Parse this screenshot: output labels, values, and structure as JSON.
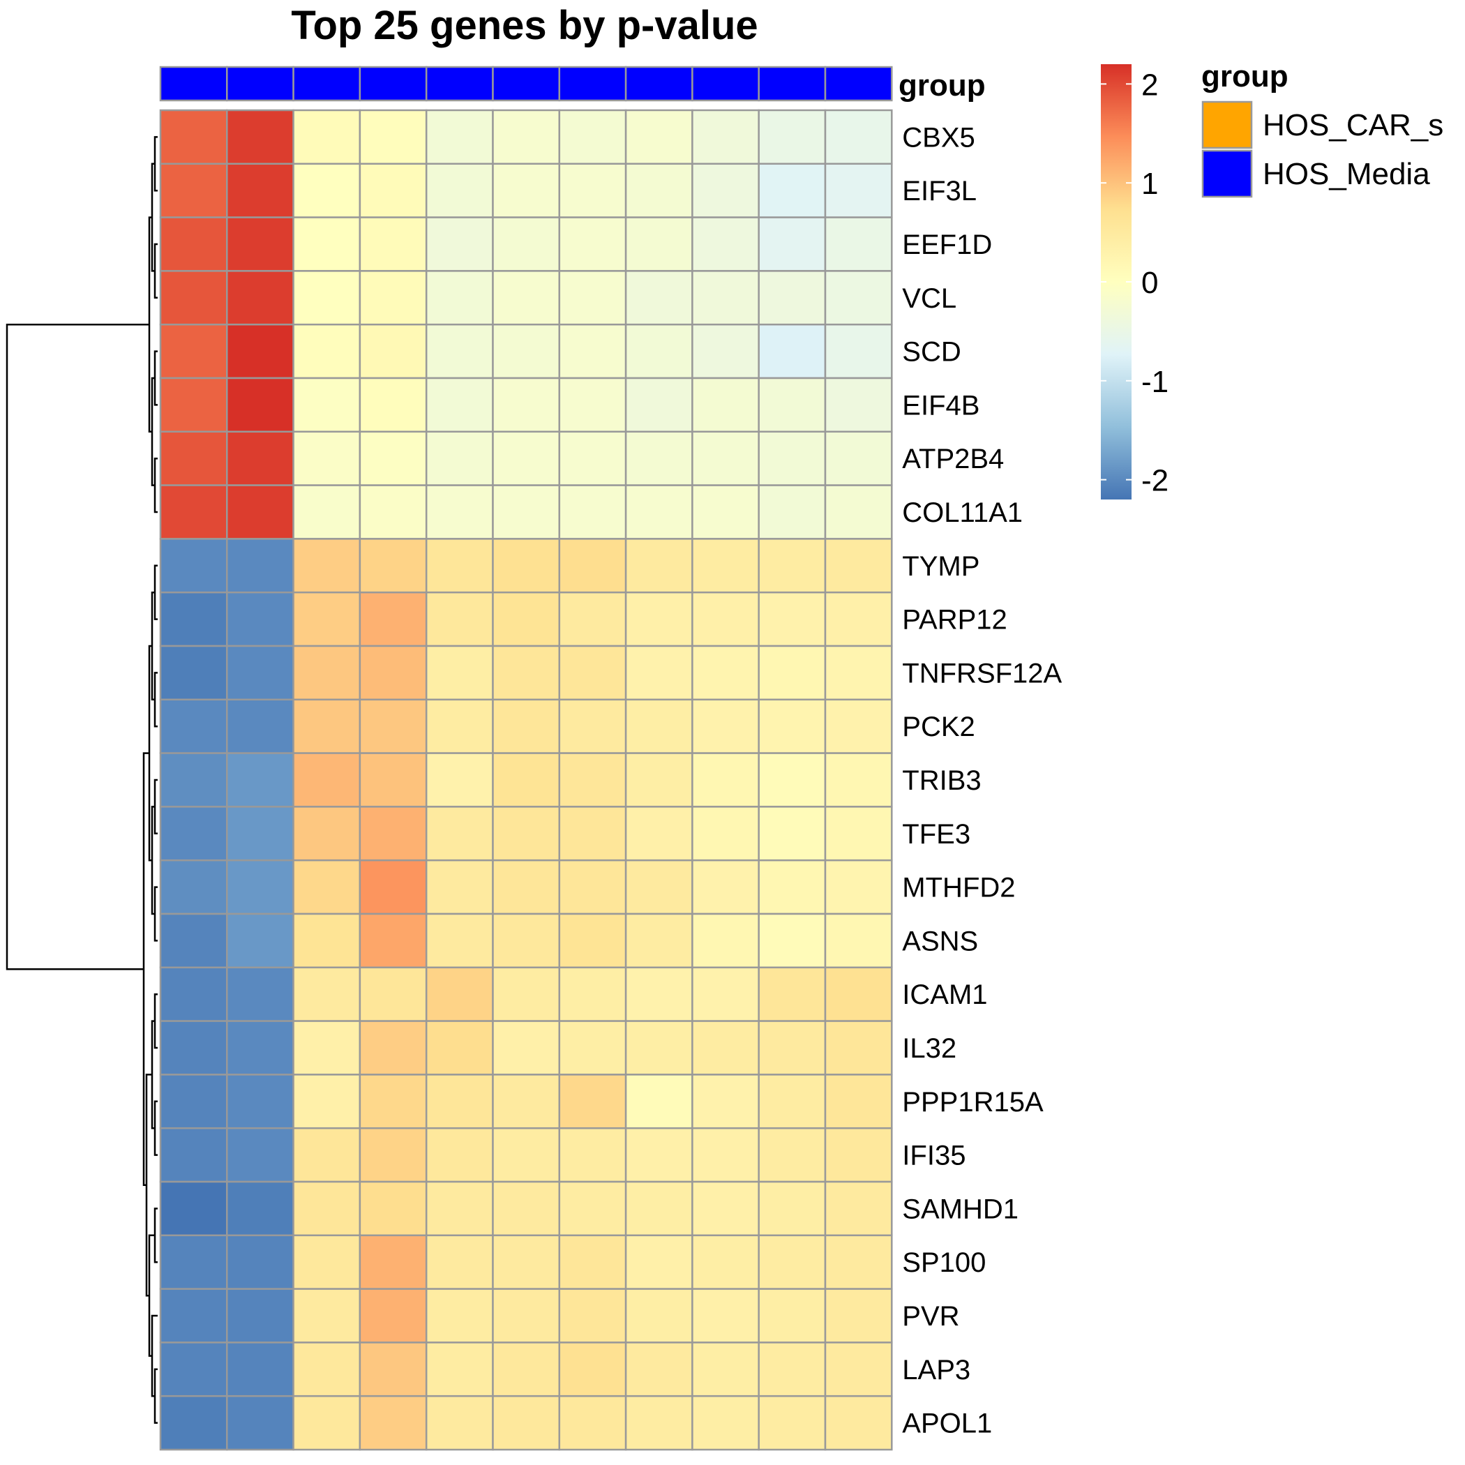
{
  "chart_data": {
    "type": "heatmap",
    "title": "Top 25 genes by p-value",
    "annotation": {
      "label": "group",
      "column_groups": [
        "HOS_Media",
        "HOS_Media",
        "HOS_Media",
        "HOS_Media",
        "HOS_Media",
        "HOS_Media",
        "HOS_Media",
        "HOS_Media",
        "HOS_Media",
        "HOS_Media",
        "HOS_Media"
      ]
    },
    "rows": [
      "CBX5",
      "EIF3L",
      "EEF1D",
      "VCL",
      "SCD",
      "EIF4B",
      "ATP2B4",
      "COL11A1",
      "TYMP",
      "PARP12",
      "TNFRSF12A",
      "PCK2",
      "TRIB3",
      "TFE3",
      "MTHFD2",
      "ASNS",
      "ICAM1",
      "IL32",
      "PPP1R15A",
      "IFI35",
      "SAMHD1",
      "SP100",
      "PVR",
      "LAP3",
      "APOL1"
    ],
    "values": [
      [
        1.8,
        2.1,
        0.1,
        0.05,
        -0.3,
        -0.2,
        -0.25,
        -0.2,
        -0.35,
        -0.5,
        -0.55
      ],
      [
        1.8,
        2.1,
        0.0,
        0.1,
        -0.3,
        -0.2,
        -0.2,
        -0.25,
        -0.4,
        -0.7,
        -0.65
      ],
      [
        1.9,
        2.1,
        0.0,
        0.1,
        -0.35,
        -0.25,
        -0.2,
        -0.25,
        -0.4,
        -0.65,
        -0.5
      ],
      [
        1.9,
        2.1,
        0.0,
        0.1,
        -0.3,
        -0.2,
        -0.2,
        -0.35,
        -0.35,
        -0.4,
        -0.45
      ],
      [
        1.8,
        2.2,
        0.05,
        0.15,
        -0.3,
        -0.25,
        -0.2,
        -0.3,
        -0.4,
        -0.75,
        -0.55
      ],
      [
        1.8,
        2.2,
        -0.05,
        0.05,
        -0.3,
        -0.2,
        -0.2,
        -0.35,
        -0.25,
        -0.3,
        -0.4
      ],
      [
        1.9,
        2.1,
        -0.1,
        -0.05,
        -0.25,
        -0.2,
        -0.2,
        -0.25,
        -0.25,
        -0.3,
        -0.3
      ],
      [
        2.0,
        2.1,
        -0.15,
        -0.1,
        -0.2,
        -0.2,
        -0.2,
        -0.2,
        -0.2,
        -0.3,
        -0.25
      ],
      [
        -2.0,
        -2.0,
        0.9,
        0.85,
        0.6,
        0.7,
        0.75,
        0.5,
        0.45,
        0.45,
        0.5
      ],
      [
        -2.1,
        -2.0,
        0.9,
        1.15,
        0.55,
        0.65,
        0.5,
        0.35,
        0.35,
        0.3,
        0.35
      ],
      [
        -2.1,
        -2.0,
        0.95,
        1.05,
        0.4,
        0.6,
        0.6,
        0.3,
        0.25,
        0.2,
        0.25
      ],
      [
        -2.0,
        -2.0,
        0.95,
        0.95,
        0.45,
        0.6,
        0.5,
        0.4,
        0.3,
        0.25,
        0.3
      ],
      [
        -1.95,
        -1.85,
        1.1,
        1.0,
        0.3,
        0.65,
        0.6,
        0.4,
        0.2,
        0.1,
        0.2
      ],
      [
        -2.0,
        -1.85,
        0.95,
        1.15,
        0.5,
        0.6,
        0.6,
        0.35,
        0.2,
        0.1,
        0.2
      ],
      [
        -1.95,
        -1.85,
        0.8,
        1.4,
        0.5,
        0.6,
        0.6,
        0.5,
        0.3,
        0.2,
        0.25
      ],
      [
        -2.05,
        -1.85,
        0.65,
        1.25,
        0.5,
        0.55,
        0.65,
        0.45,
        0.2,
        0.1,
        0.2
      ],
      [
        -2.05,
        -2.0,
        0.5,
        0.6,
        0.85,
        0.45,
        0.4,
        0.3,
        0.3,
        0.6,
        0.7
      ],
      [
        -2.05,
        -2.0,
        0.35,
        0.9,
        0.75,
        0.35,
        0.4,
        0.4,
        0.45,
        0.5,
        0.6
      ],
      [
        -2.05,
        -2.0,
        0.35,
        0.8,
        0.6,
        0.5,
        0.8,
        0.1,
        0.3,
        0.45,
        0.6
      ],
      [
        -2.05,
        -2.0,
        0.6,
        0.85,
        0.55,
        0.45,
        0.45,
        0.35,
        0.35,
        0.45,
        0.55
      ],
      [
        -2.2,
        -2.1,
        0.6,
        0.75,
        0.5,
        0.5,
        0.45,
        0.4,
        0.35,
        0.4,
        0.5
      ],
      [
        -2.05,
        -2.05,
        0.55,
        1.15,
        0.5,
        0.5,
        0.6,
        0.35,
        0.4,
        0.45,
        0.5
      ],
      [
        -2.05,
        -2.05,
        0.5,
        1.15,
        0.45,
        0.5,
        0.6,
        0.4,
        0.35,
        0.4,
        0.5
      ],
      [
        -2.05,
        -2.05,
        0.55,
        0.95,
        0.45,
        0.55,
        0.7,
        0.5,
        0.4,
        0.45,
        0.5
      ],
      [
        -2.1,
        -2.05,
        0.55,
        0.9,
        0.5,
        0.55,
        0.55,
        0.45,
        0.4,
        0.45,
        0.5
      ]
    ],
    "color_scale": {
      "min": -2.2,
      "max": 2.2,
      "ticks": [
        2,
        1,
        0,
        -1,
        -2
      ],
      "colors": [
        "#4575b4",
        "#91bfdb",
        "#e0f3f8",
        "#ffffbf",
        "#fee090",
        "#fc8d59",
        "#d73027"
      ]
    },
    "legend": {
      "title": "group",
      "items": [
        {
          "label": "HOS_CAR_s",
          "color": "#ffa500"
        },
        {
          "label": "HOS_Media",
          "color": "#0000ff"
        }
      ]
    },
    "row_dendrogram": true
  }
}
